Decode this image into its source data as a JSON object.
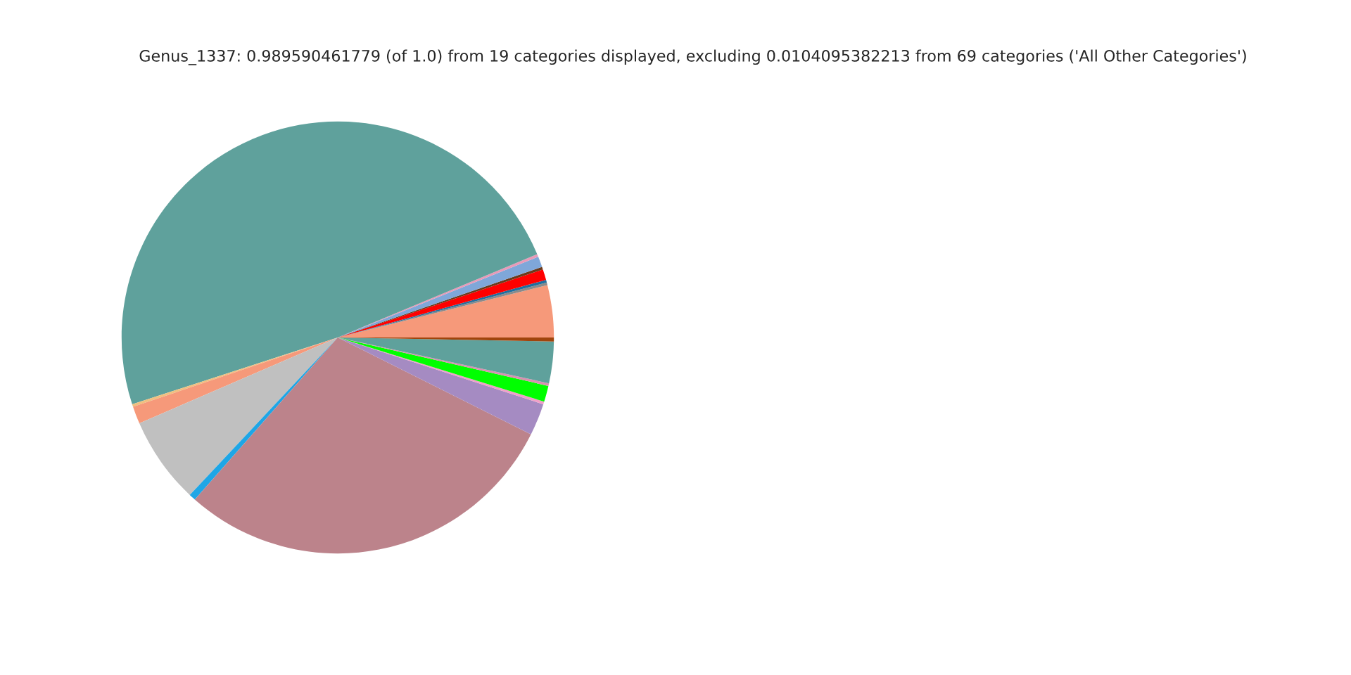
{
  "chart_data": {
    "type": "pie",
    "title": "Genus_1337: 0.989590461779 (of 1.0) from 19 categories displayed, excluding 0.0104095382213 from 69 categories ('All Other Categories')",
    "categories": [
      null,
      null,
      null,
      null,
      null,
      null,
      null,
      null,
      null,
      null,
      null,
      null,
      null,
      null,
      null,
      null,
      null,
      null,
      null
    ],
    "values": [
      3.9,
      0.2,
      0.2,
      0.8,
      0.2,
      0.8,
      0.2,
      48.7,
      0.2,
      1.3,
      6.5,
      0.5,
      29.1,
      2.4,
      0.2,
      1.2,
      0.2,
      3.1,
      0.3
    ],
    "colors": [
      "#f6997a",
      "#8a8a8a",
      "#1f6f9f",
      "#ff0000",
      "#6b3a1a",
      "#7fa7d9",
      "#e89ab8",
      "#5fa19c",
      "#f0c080",
      "#f6997a",
      "#c0c0c0",
      "#1ea6e6",
      "#bc838b",
      "#a58bc2",
      "#f0a0c8",
      "#00ff00",
      "#d890b0",
      "#5fa19c",
      "#a0450d"
    ],
    "legend": false
  }
}
